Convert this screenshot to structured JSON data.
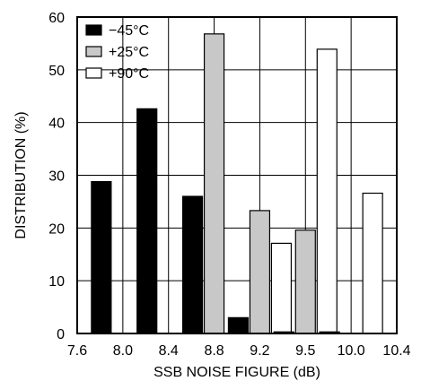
{
  "chart_data": {
    "type": "bar",
    "xlabel": "SSB NOISE FIGURE (dB)",
    "ylabel": "DISTRIBUTION (%)",
    "ylim": [
      0,
      60
    ],
    "yticks": [
      0,
      10,
      20,
      30,
      40,
      50,
      60
    ],
    "xtick_labels": [
      "7.6",
      "8.0",
      "8.4",
      "8.8",
      "9.2",
      "9.5",
      "10.0",
      "10.4"
    ],
    "categories": [
      "8.0",
      "8.4",
      "8.8",
      "9.2",
      "9.5",
      "10.0"
    ],
    "grid": true,
    "legend_position": "top-left",
    "series": [
      {
        "name": "−45°C",
        "color": "#000000",
        "values": [
          28.8,
          42.6,
          26.0,
          3.0,
          0.3,
          0.3
        ]
      },
      {
        "name": "+25°C",
        "color": "#c8c8c8",
        "values": [
          0,
          0,
          56.8,
          23.3,
          19.6,
          0
        ]
      },
      {
        "name": "+90°C",
        "color": "#ffffff",
        "values": [
          0,
          0,
          0,
          17.1,
          53.9,
          26.6
        ]
      }
    ]
  }
}
